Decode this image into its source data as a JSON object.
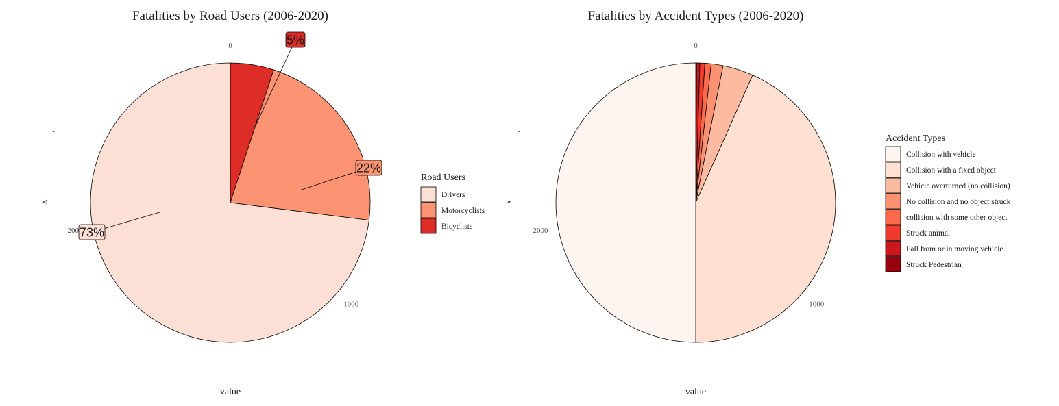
{
  "chart_data": [
    {
      "type": "pie",
      "title": "Fatalities by Road Users (2006-2020)",
      "xlabel": "value",
      "ylabel": "x",
      "y_tick": "-",
      "theta_ticks": [
        "0",
        "1000",
        "2000"
      ],
      "theta_tick_values": [
        0,
        1000,
        2000
      ],
      "theta_max": 2770,
      "legend_title": "Road Users",
      "legend_position": "right",
      "categories": [
        "Drivers",
        "Motorcyclists",
        "Bicyclists"
      ],
      "values": [
        2022,
        609,
        139
      ],
      "colors": [
        "#fde0d5",
        "#fc9373",
        "#de2d26"
      ],
      "labels": [
        "73%",
        "22%",
        "5%"
      ]
    },
    {
      "type": "pie",
      "title": "Fatalities by Accident Types (2006-2020)",
      "xlabel": "value",
      "ylabel": "x",
      "y_tick": "-",
      "theta_ticks": [
        "0",
        "1000",
        "2000"
      ],
      "theta_tick_values": [
        0,
        1000,
        2000
      ],
      "theta_max": 2770,
      "legend_title": "Accident Types",
      "legend_position": "right",
      "categories": [
        "Collision with vehicle",
        "Collision with a fixed object",
        "Vehicle overturned (no collision)",
        "No collision and no object struck",
        "collision with some other object",
        "Struck animal",
        "Fall from or in moving vehicle",
        "Struck Pedestrian"
      ],
      "values": [
        1385,
        1200,
        98,
        38,
        20,
        16,
        10,
        3
      ],
      "colors": [
        "#fff5f0",
        "#fee0d2",
        "#fcbba1",
        "#fc9272",
        "#fb6a4a",
        "#ef3b2c",
        "#cb181d",
        "#99000d"
      ]
    }
  ]
}
